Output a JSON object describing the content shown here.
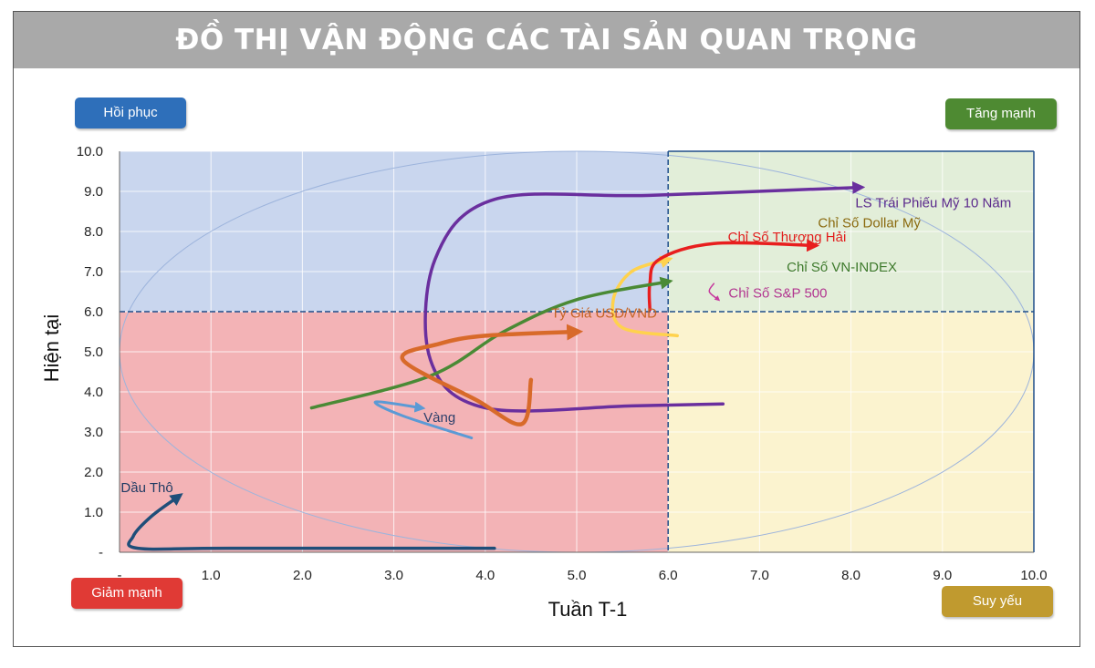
{
  "title": "ĐỒ THỊ VẬN ĐỘNG CÁC TÀI SẢN QUAN TRỌNG",
  "quadrants": {
    "top_left": "Hồi phục",
    "top_right": "Tăng mạnh",
    "bottom_left": "Giảm mạnh",
    "bottom_right": "Suy yếu"
  },
  "colors": {
    "quad_top_left": "#c9d6ee",
    "quad_top_right": "#e2eed9",
    "quad_bottom_left": "#f3b3b6",
    "quad_bottom_right": "#fbf3cf"
  },
  "chart_data": {
    "type": "line",
    "xlabel": "Tuần T-1",
    "ylabel": "Hiện tại",
    "xlim": [
      0,
      10
    ],
    "ylim": [
      0,
      10
    ],
    "x_ticks": [
      "-",
      "1.0",
      "2.0",
      "3.0",
      "4.0",
      "5.0",
      "6.0",
      "7.0",
      "8.0",
      "9.0",
      "10.0"
    ],
    "y_ticks": [
      "-",
      "1.0",
      "2.0",
      "3.0",
      "4.0",
      "5.0",
      "6.0",
      "7.0",
      "8.0",
      "9.0",
      "10.0"
    ],
    "divider_x": 6.0,
    "divider_y": 6.0,
    "grid": true,
    "series": [
      {
        "name": "LS Trái Phiếu Mỹ 10 Năm",
        "color": "#6a2f9e",
        "x": [
          6.6,
          5.6,
          4.0,
          3.4,
          3.45,
          4.1,
          5.8,
          8.1
        ],
        "y": [
          3.7,
          3.65,
          3.6,
          4.8,
          7.3,
          8.8,
          8.9,
          9.1
        ]
      },
      {
        "name": "Chỉ Số Dollar Mỹ",
        "color": "#ffd24d",
        "x": [
          6.1,
          5.5,
          5.4,
          5.6,
          6.0
        ],
        "y": [
          5.4,
          5.6,
          6.3,
          7.0,
          7.3
        ]
      },
      {
        "name": "Chỉ Số Thượng Hải",
        "color": "#e81e1e",
        "x": [
          5.8,
          5.8,
          5.9,
          6.5,
          7.6
        ],
        "y": [
          6.05,
          6.7,
          7.3,
          7.7,
          7.65
        ]
      },
      {
        "name": "Chỉ Số VN-INDEX",
        "color": "#4a8a35",
        "x": [
          2.1,
          3.4,
          4.2,
          5.0,
          6.0
        ],
        "y": [
          3.6,
          4.4,
          5.5,
          6.3,
          6.75
        ]
      },
      {
        "name": "Chỉ Số S&P 500",
        "color": "#c63a9e",
        "x": [
          6.5,
          6.45,
          6.55
        ],
        "y": [
          6.7,
          6.5,
          6.3
        ]
      },
      {
        "name": "Tỷ Giá USD/VND",
        "color": "#d86a2a",
        "x": [
          4.5,
          4.4,
          3.9,
          3.1,
          3.5,
          4.0,
          5.0
        ],
        "y": [
          4.3,
          3.2,
          3.8,
          4.8,
          5.2,
          5.4,
          5.5
        ]
      },
      {
        "name": "Vàng",
        "color": "#5b9ad5",
        "x": [
          3.85,
          3.1,
          2.8,
          3.3
        ],
        "y": [
          2.85,
          3.4,
          3.75,
          3.6
        ]
      },
      {
        "name": "Dầu Thô",
        "color": "#1f4e79",
        "x": [
          4.1,
          1.2,
          0.2,
          0.15,
          0.35,
          0.65
        ],
        "y": [
          0.1,
          0.1,
          0.1,
          0.4,
          0.9,
          1.4
        ]
      }
    ]
  }
}
